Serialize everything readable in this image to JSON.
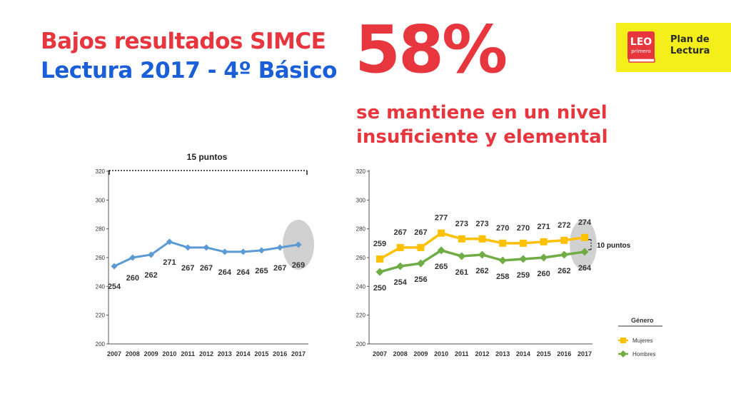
{
  "header": {
    "title_line1": "Bajos resultados SIMCE",
    "title_line2": "Lectura 2017 - 4º Básico",
    "big_percent": "58%",
    "subtitle_line1": "se mantiene en un nivel",
    "subtitle_line2": "insuficiente y elemental"
  },
  "logo": {
    "badge_line1": "LEO",
    "badge_line2": "primero",
    "text_line1": "Plan de",
    "text_line2": "Lectura"
  },
  "colors": {
    "red": "#e8363f",
    "blue": "#1a5fd8",
    "yellow_bg": "#f4ef1b",
    "line_blue": "#5b9bd5",
    "mujeres": "#ffc000",
    "hombres": "#70ad47",
    "highlight": "#c9c9c9"
  },
  "chart_data": [
    {
      "type": "line",
      "title": "",
      "annotation": "15 puntos",
      "categories": [
        "2007",
        "2008",
        "2009",
        "2010",
        "2011",
        "2012",
        "2013",
        "2014",
        "2015",
        "2016",
        "2017"
      ],
      "series": [
        {
          "values": [
            254,
            260,
            262,
            271,
            267,
            267,
            264,
            264,
            265,
            267,
            269
          ]
        }
      ],
      "xlabel": "",
      "ylabel": "",
      "ylim": [
        200,
        320
      ],
      "yticks": [
        200,
        220,
        240,
        260,
        280,
        300,
        320
      ],
      "grid": false,
      "highlight_category": "2017"
    },
    {
      "type": "line",
      "title": "",
      "annotation": "10 puntos",
      "categories": [
        "2007",
        "2008",
        "2009",
        "2010",
        "2011",
        "2012",
        "2013",
        "2014",
        "2015",
        "2016",
        "2017"
      ],
      "series": [
        {
          "name": "Mujeres",
          "values": [
            259,
            267,
            267,
            277,
            273,
            273,
            270,
            270,
            271,
            272,
            274
          ]
        },
        {
          "name": "Hombres",
          "values": [
            250,
            254,
            256,
            265,
            261,
            262,
            258,
            259,
            260,
            262,
            264
          ]
        }
      ],
      "legend_title": "Género",
      "legend_position": "bottom-right",
      "xlabel": "",
      "ylabel": "",
      "ylim": [
        200,
        320
      ],
      "yticks": [
        200,
        220,
        240,
        260,
        280,
        300,
        320
      ],
      "grid": false,
      "highlight_category": "2017"
    }
  ]
}
